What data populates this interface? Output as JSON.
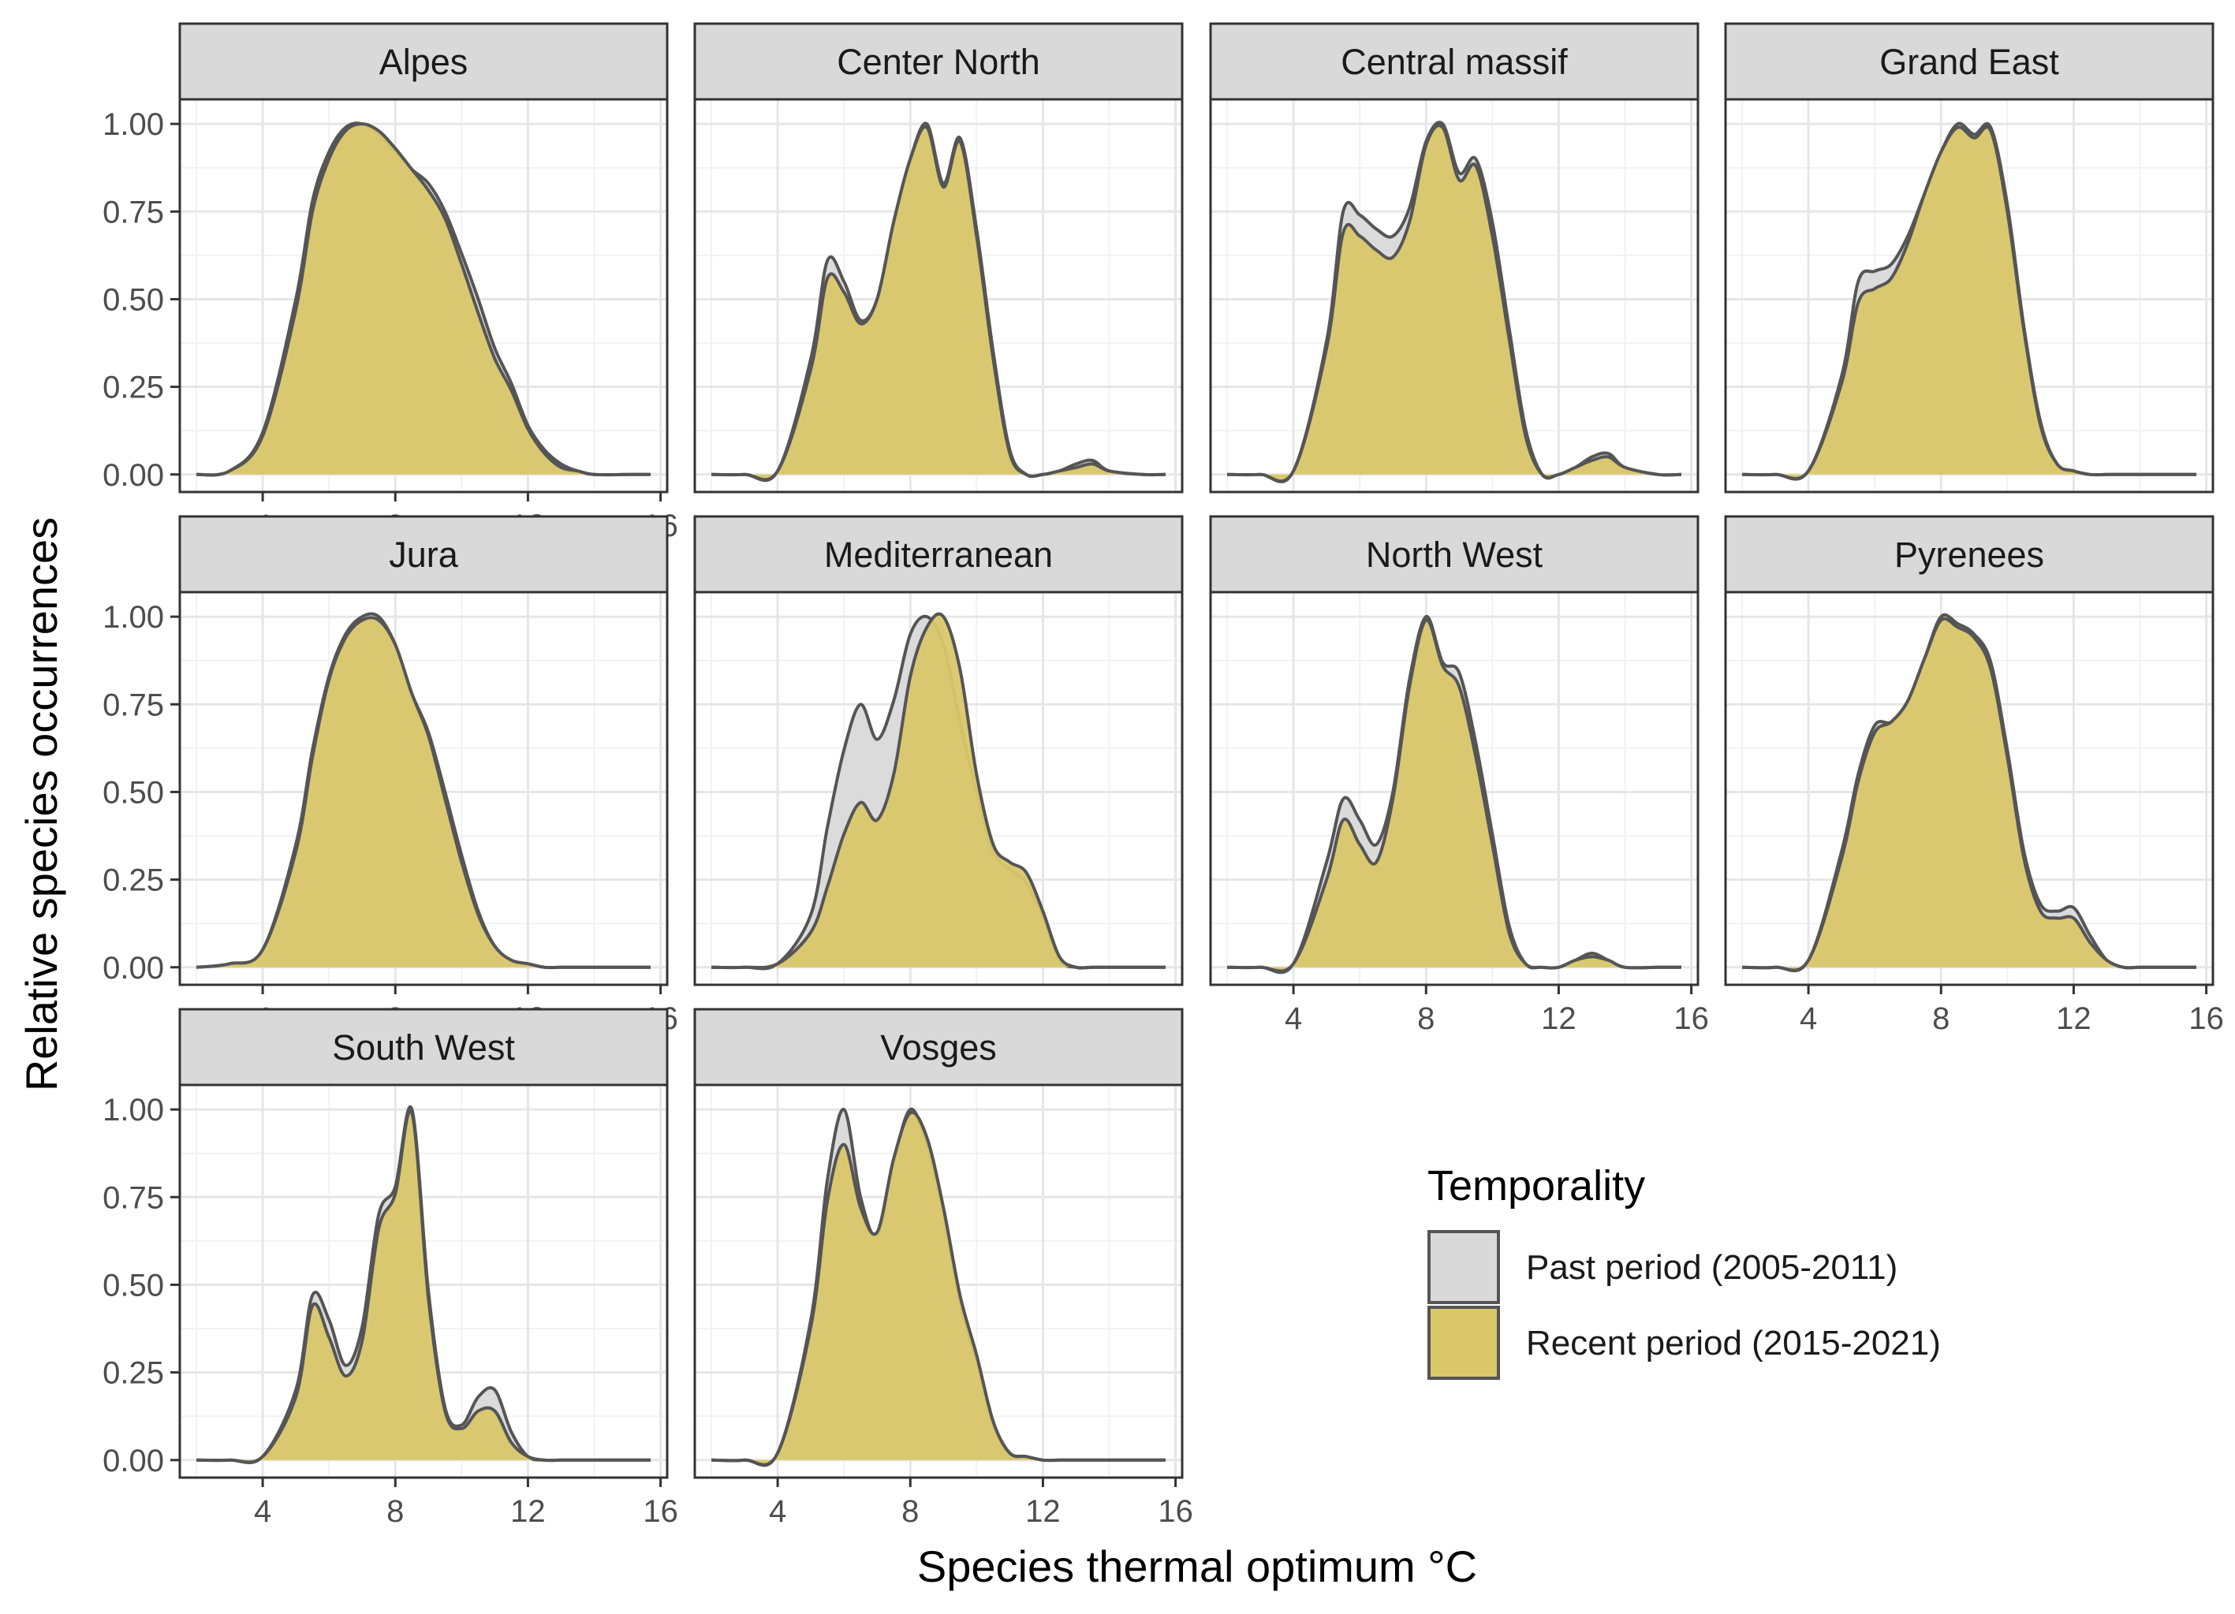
{
  "chart_data": {
    "type": "area",
    "subtype": "faceted density ridge",
    "xlabel": "Species thermal optimum °C",
    "ylabel": "Relative species occurrences",
    "xlim": [
      1.5,
      16.2
    ],
    "ylim": [
      -0.05,
      1.07
    ],
    "xticks": [
      4,
      8,
      12,
      16
    ],
    "yticks": [
      0.0,
      0.25,
      0.5,
      0.75,
      1.0
    ],
    "ytick_labels": [
      "0.00",
      "0.25",
      "0.50",
      "0.75",
      "1.00"
    ],
    "grid": true,
    "legend": {
      "title": "Temporality",
      "placement": "bottom-right",
      "entries": [
        "Past period (2005-2011)",
        "Recent period (2015-2021)"
      ]
    },
    "series_styles": [
      {
        "name": "Past period (2005-2011)",
        "fill": "#d9d9d9",
        "line": "#555555"
      },
      {
        "name": "Recent period (2015-2021)",
        "fill": "#d9c76a",
        "line": "#555555"
      }
    ],
    "x": [
      2,
      3,
      4,
      5,
      5.5,
      6,
      6.5,
      7,
      7.5,
      8,
      8.5,
      9,
      9.5,
      10,
      10.5,
      11,
      11.5,
      12,
      12.5,
      13,
      13.5,
      14,
      15,
      15.7
    ],
    "panels": [
      {
        "name": "Alpes",
        "past": [
          0,
          0.01,
          0.12,
          0.5,
          0.78,
          0.92,
          0.99,
          1.0,
          0.97,
          0.92,
          0.87,
          0.83,
          0.75,
          0.63,
          0.5,
          0.36,
          0.26,
          0.14,
          0.07,
          0.03,
          0.01,
          0,
          0,
          0
        ],
        "recent": [
          0,
          0.01,
          0.11,
          0.47,
          0.75,
          0.9,
          0.98,
          1.0,
          0.98,
          0.93,
          0.87,
          0.81,
          0.73,
          0.6,
          0.46,
          0.33,
          0.24,
          0.13,
          0.06,
          0.02,
          0.01,
          0,
          0,
          0
        ]
      },
      {
        "name": "Center North",
        "past": [
          0,
          0,
          0.01,
          0.33,
          0.61,
          0.55,
          0.44,
          0.5,
          0.72,
          0.9,
          1.0,
          0.83,
          0.96,
          0.7,
          0.35,
          0.07,
          0,
          0,
          0.01,
          0.03,
          0.04,
          0.01,
          0,
          0
        ],
        "recent": [
          0,
          0,
          0.01,
          0.3,
          0.56,
          0.52,
          0.43,
          0.5,
          0.72,
          0.9,
          0.99,
          0.82,
          0.95,
          0.68,
          0.33,
          0.06,
          0,
          0,
          0.01,
          0.02,
          0.03,
          0.01,
          0,
          0
        ],
        "hide_x_ticks": true
      },
      {
        "name": "Central massif",
        "past": [
          0,
          0,
          0.01,
          0.38,
          0.75,
          0.74,
          0.7,
          0.68,
          0.76,
          0.95,
          1.0,
          0.86,
          0.9,
          0.72,
          0.42,
          0.13,
          0,
          0,
          0.02,
          0.05,
          0.06,
          0.02,
          0,
          0
        ],
        "recent": [
          0,
          0,
          0.01,
          0.36,
          0.69,
          0.68,
          0.64,
          0.62,
          0.72,
          0.94,
          0.99,
          0.84,
          0.88,
          0.68,
          0.39,
          0.11,
          0,
          0,
          0.02,
          0.04,
          0.05,
          0.02,
          0,
          0
        ],
        "hide_x_ticks": true
      },
      {
        "name": "Grand East",
        "past": [
          0,
          0,
          0.01,
          0.28,
          0.55,
          0.58,
          0.6,
          0.68,
          0.8,
          0.92,
          1.0,
          0.97,
          0.99,
          0.77,
          0.42,
          0.15,
          0.03,
          0.01,
          0,
          0,
          0,
          0,
          0,
          0
        ],
        "recent": [
          0,
          0,
          0.01,
          0.26,
          0.49,
          0.53,
          0.56,
          0.66,
          0.8,
          0.92,
          0.99,
          0.96,
          0.98,
          0.75,
          0.41,
          0.14,
          0.03,
          0.01,
          0,
          0,
          0,
          0,
          0,
          0
        ],
        "hide_x_ticks": true
      },
      {
        "name": "Jura",
        "past": [
          0,
          0.01,
          0.05,
          0.35,
          0.62,
          0.83,
          0.95,
          1.0,
          1.0,
          0.92,
          0.78,
          0.67,
          0.5,
          0.32,
          0.16,
          0.06,
          0.02,
          0.01,
          0,
          0,
          0,
          0,
          0,
          0
        ],
        "recent": [
          0,
          0.01,
          0.05,
          0.33,
          0.6,
          0.82,
          0.94,
          0.99,
          0.99,
          0.92,
          0.78,
          0.66,
          0.48,
          0.3,
          0.15,
          0.06,
          0.02,
          0.01,
          0,
          0,
          0,
          0,
          0,
          0
        ]
      },
      {
        "name": "Mediterranean",
        "past": [
          0,
          0,
          0.01,
          0.15,
          0.4,
          0.62,
          0.75,
          0.65,
          0.76,
          0.95,
          1.0,
          0.92,
          0.7,
          0.5,
          0.33,
          0.28,
          0.24,
          0.14,
          0.02,
          0,
          0,
          0,
          0,
          0
        ],
        "recent": [
          0,
          0,
          0.01,
          0.1,
          0.23,
          0.38,
          0.47,
          0.42,
          0.55,
          0.83,
          0.97,
          1.0,
          0.85,
          0.55,
          0.35,
          0.3,
          0.27,
          0.16,
          0.03,
          0,
          0,
          0,
          0,
          0
        ],
        "hide_x_ticks": true
      },
      {
        "name": "North West",
        "past": [
          0,
          0,
          0.01,
          0.3,
          0.48,
          0.42,
          0.35,
          0.5,
          0.82,
          1.0,
          0.87,
          0.84,
          0.64,
          0.38,
          0.12,
          0.01,
          0,
          0,
          0.02,
          0.04,
          0.02,
          0,
          0,
          0
        ],
        "recent": [
          0,
          0,
          0.01,
          0.25,
          0.42,
          0.35,
          0.3,
          0.48,
          0.8,
          0.99,
          0.86,
          0.8,
          0.6,
          0.35,
          0.1,
          0.01,
          0,
          0,
          0.02,
          0.03,
          0.02,
          0,
          0,
          0
        ]
      },
      {
        "name": "Pyrenees",
        "past": [
          0,
          0,
          0.02,
          0.33,
          0.55,
          0.69,
          0.7,
          0.76,
          0.88,
          1.0,
          0.98,
          0.95,
          0.87,
          0.62,
          0.33,
          0.18,
          0.16,
          0.17,
          0.09,
          0.02,
          0,
          0,
          0,
          0
        ],
        "recent": [
          0,
          0,
          0.02,
          0.31,
          0.53,
          0.67,
          0.7,
          0.76,
          0.88,
          0.99,
          0.97,
          0.94,
          0.85,
          0.6,
          0.31,
          0.16,
          0.14,
          0.14,
          0.07,
          0.02,
          0,
          0,
          0,
          0
        ]
      },
      {
        "name": "South West",
        "past": [
          0,
          0,
          0.01,
          0.2,
          0.47,
          0.4,
          0.27,
          0.38,
          0.7,
          0.78,
          1.0,
          0.48,
          0.15,
          0.1,
          0.18,
          0.2,
          0.08,
          0.01,
          0,
          0,
          0,
          0,
          0,
          0
        ],
        "recent": [
          0,
          0,
          0.01,
          0.18,
          0.44,
          0.35,
          0.24,
          0.34,
          0.66,
          0.76,
          0.99,
          0.46,
          0.14,
          0.09,
          0.14,
          0.14,
          0.05,
          0.01,
          0,
          0,
          0,
          0,
          0,
          0
        ]
      },
      {
        "name": "Vosges",
        "past": [
          0,
          0,
          0.02,
          0.4,
          0.8,
          1.0,
          0.75,
          0.64,
          0.85,
          1.0,
          0.9,
          0.7,
          0.45,
          0.28,
          0.1,
          0.02,
          0.01,
          0,
          0,
          0,
          0,
          0,
          0,
          0
        ],
        "recent": [
          0,
          0,
          0.02,
          0.38,
          0.74,
          0.9,
          0.72,
          0.65,
          0.86,
          0.99,
          0.92,
          0.72,
          0.47,
          0.3,
          0.11,
          0.02,
          0.01,
          0,
          0,
          0,
          0,
          0,
          0,
          0
        ]
      }
    ]
  }
}
